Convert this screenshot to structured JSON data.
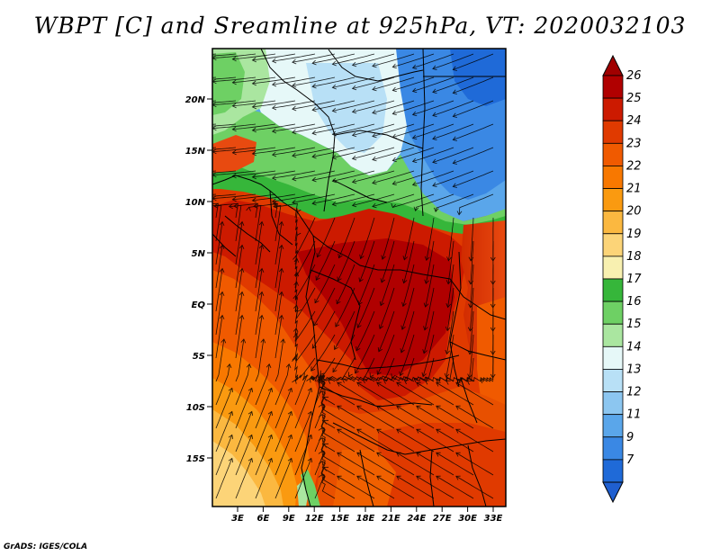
{
  "title": "WBPT [C] and Sreamline at 925hPa, VT: 2020032103",
  "footer": "GrADS: IGES/COLA",
  "lat_labels": [
    "20N",
    "15N",
    "10N",
    "5N",
    "EQ",
    "5S",
    "10S",
    "15S"
  ],
  "lon_labels": [
    "3E",
    "6E",
    "9E",
    "12E",
    "15E",
    "18E",
    "21E",
    "24E",
    "27E",
    "30E",
    "33E"
  ],
  "colorbar": {
    "labels": [
      "26",
      "25",
      "24",
      "23",
      "22",
      "21",
      "20",
      "19",
      "18",
      "17",
      "16",
      "15",
      "14",
      "13",
      "12",
      "11",
      "9",
      "7"
    ],
    "colors": [
      "#b00000",
      "#cc1a00",
      "#e03a00",
      "#f05a00",
      "#f87800",
      "#fa9a10",
      "#fbb840",
      "#fcd478",
      "#f8f0b0",
      "#36b63a",
      "#6ed064",
      "#aae6a0",
      "#e6f8f8",
      "#b8e0f6",
      "#8cc6f0",
      "#5aa6ea",
      "#3a88e4",
      "#1f6ad8"
    ],
    "top_arrow_color": "#a00000",
    "bottom_arrow_color": "#1f5fd0"
  }
}
